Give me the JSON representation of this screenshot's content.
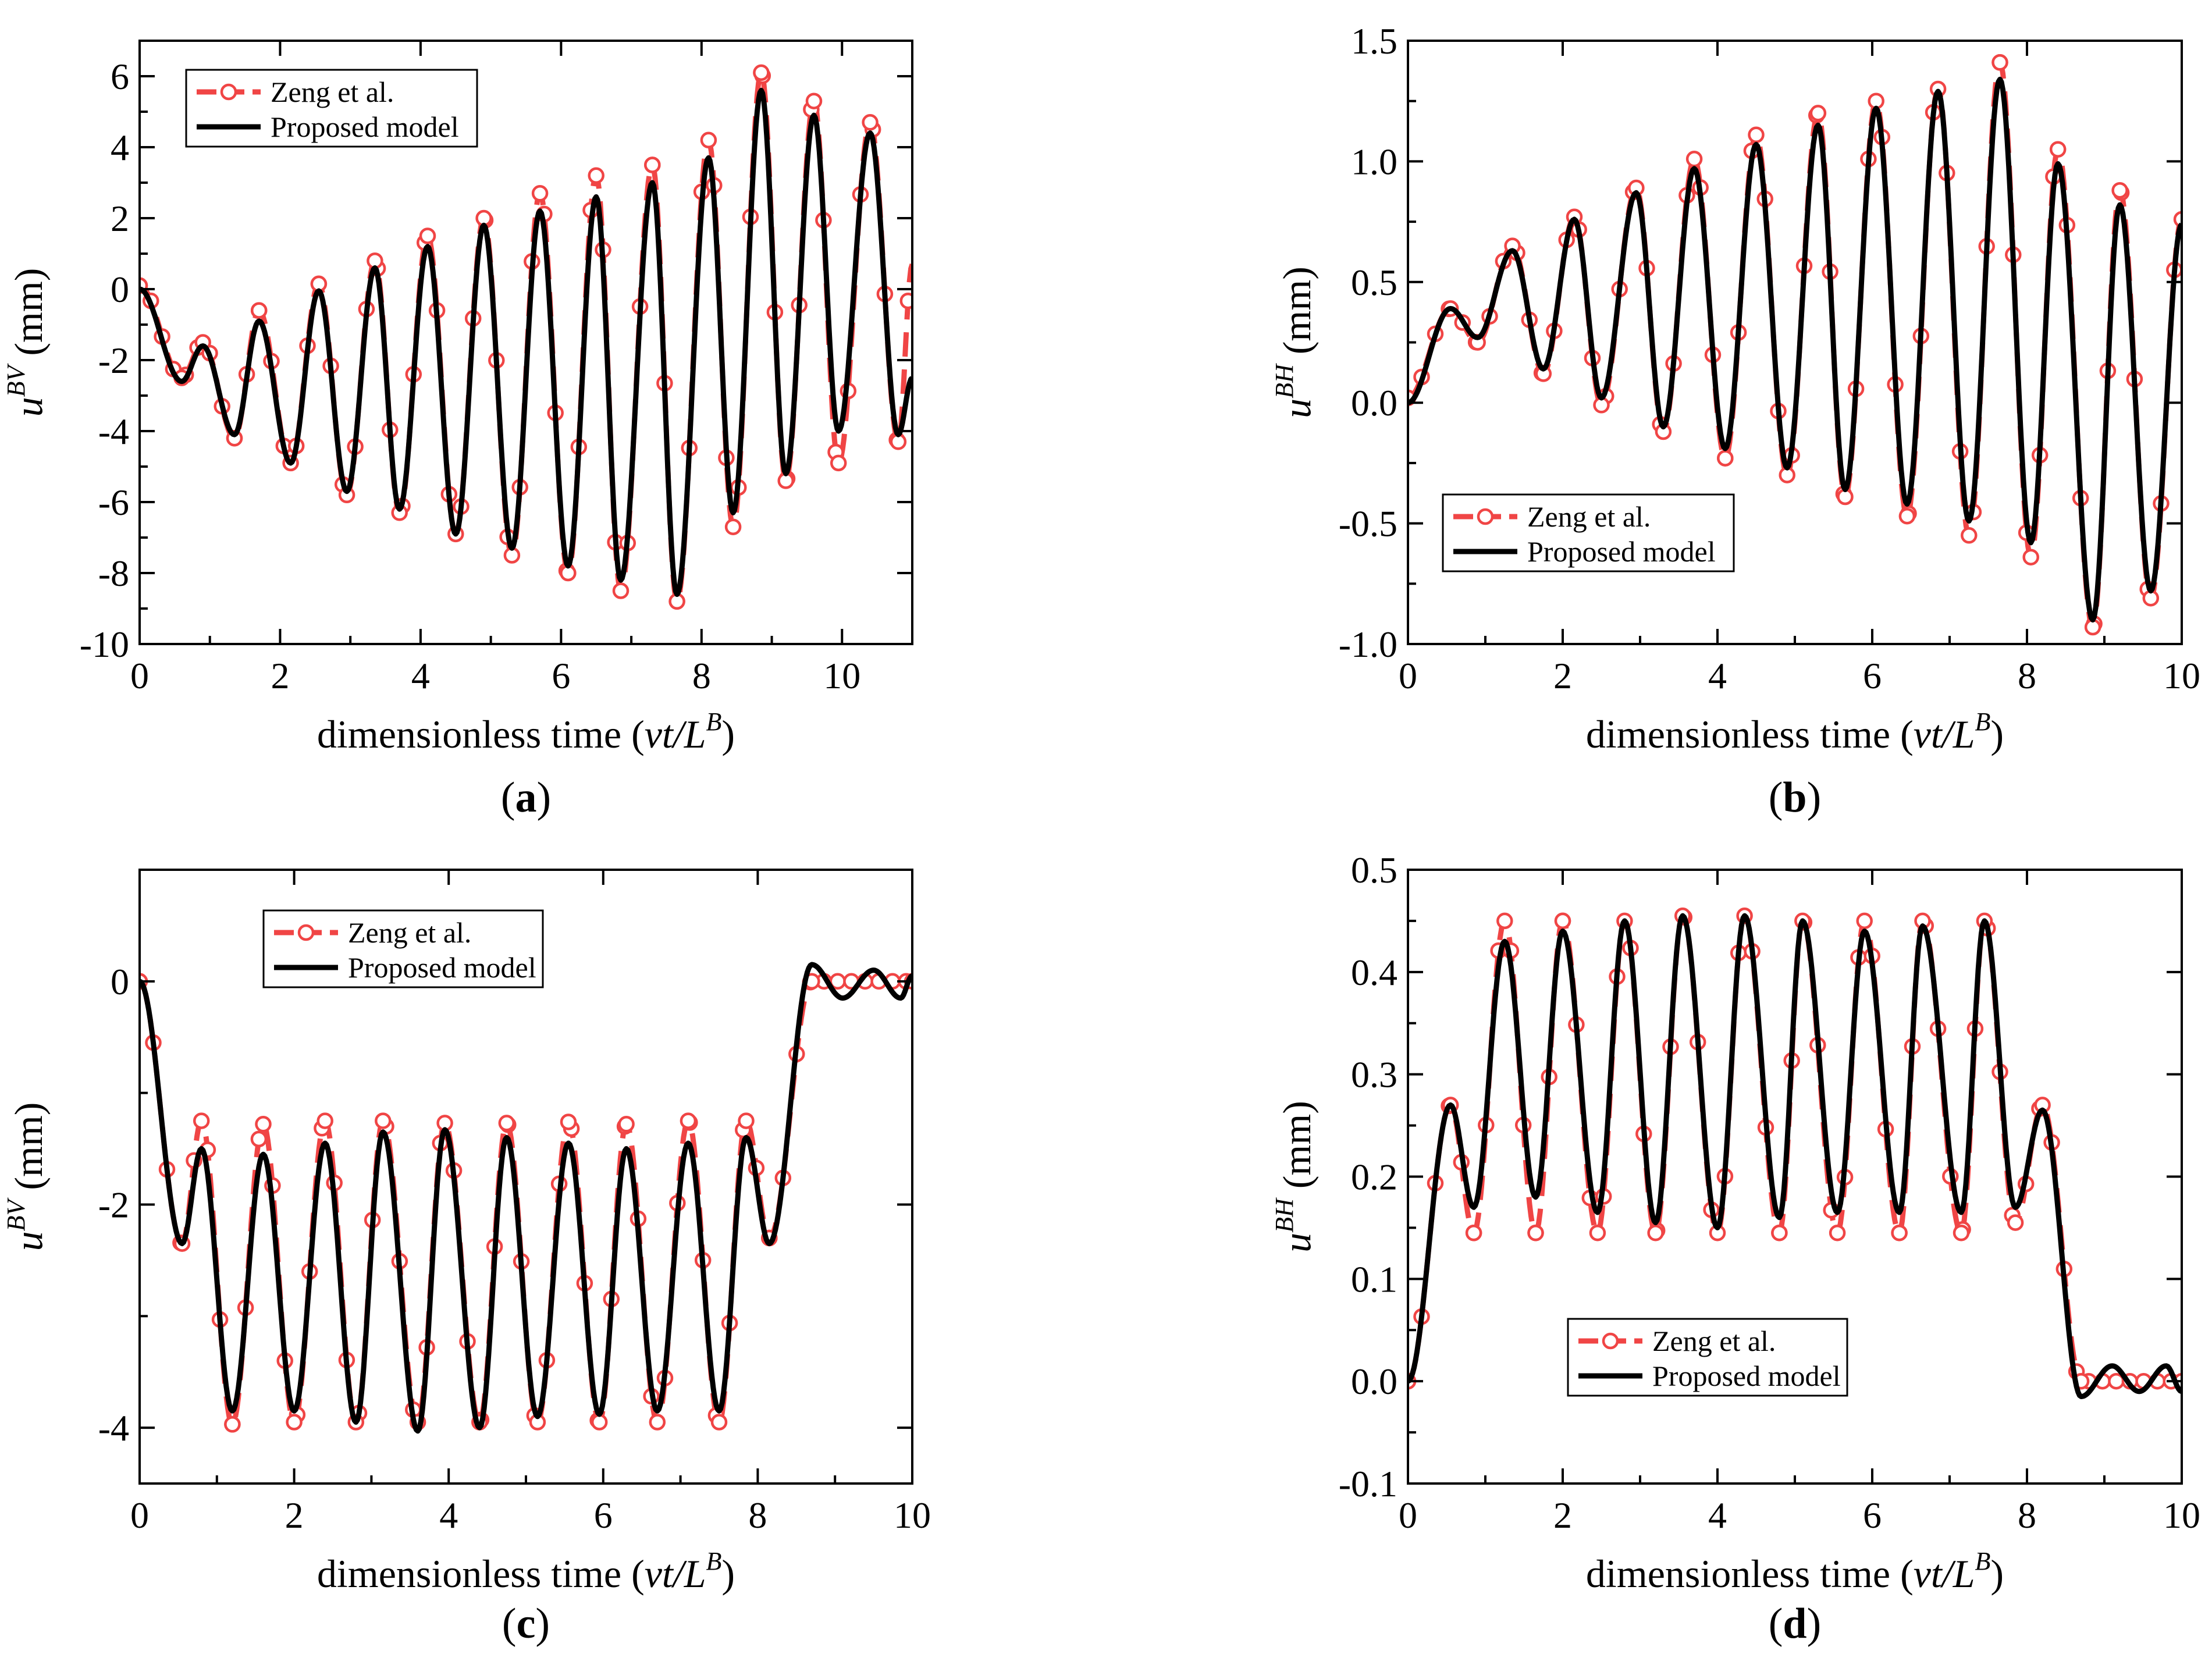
{
  "colors": {
    "reference": "#f04545",
    "proposed": "#000000",
    "axis": "#000000",
    "background": "#ffffff"
  },
  "chart_data": [
    {
      "id": "a",
      "type": "line",
      "caption": {
        "open": "(",
        "letter": "a",
        "close": ")"
      },
      "xlabel": {
        "text": "dimensionless time (",
        "var": "vt/L",
        "sup": "B",
        "close": ")"
      },
      "ylabel": {
        "base": "u",
        "sup": "BV",
        "unit": " (mm)"
      },
      "xlim": [
        0,
        11
      ],
      "ylim": [
        -10,
        7
      ],
      "xticks": [
        0,
        2,
        4,
        6,
        8,
        10
      ],
      "xtick_labels": [
        "0",
        "2",
        "4",
        "6",
        "8",
        "10"
      ],
      "yticks": [
        -10,
        -8,
        -6,
        -4,
        -2,
        0,
        2,
        4,
        6
      ],
      "ytick_labels": [
        "-10",
        "-8",
        "-6",
        "-4",
        "-2",
        "0",
        "2",
        "4",
        "6"
      ],
      "legend_position": "top-left",
      "grid": false,
      "series": [
        {
          "name": "Zeng et al.",
          "style": "dashed-circles",
          "role": "reference"
        },
        {
          "name": "Proposed model",
          "style": "solid",
          "role": "proposed"
        }
      ],
      "signal": {
        "shape": "growing-oscillation",
        "period": 0.79,
        "peaks": [
          [
            0.0,
            0.0
          ],
          [
            0.9,
            -1.6
          ],
          [
            1.7,
            -0.9
          ],
          [
            2.55,
            -0.05
          ],
          [
            3.35,
            0.6
          ],
          [
            4.1,
            1.2
          ],
          [
            4.9,
            1.8
          ],
          [
            5.7,
            2.2
          ],
          [
            6.5,
            2.6
          ],
          [
            7.3,
            3.0
          ],
          [
            8.1,
            3.7
          ],
          [
            8.85,
            5.6
          ],
          [
            9.6,
            4.9
          ],
          [
            10.4,
            4.4
          ]
        ],
        "troughs": [
          [
            0.6,
            -2.6
          ],
          [
            1.35,
            -4.1
          ],
          [
            2.15,
            -4.9
          ],
          [
            2.95,
            -5.7
          ],
          [
            3.7,
            -6.2
          ],
          [
            4.5,
            -6.9
          ],
          [
            5.3,
            -7.3
          ],
          [
            6.1,
            -7.8
          ],
          [
            6.85,
            -8.2
          ],
          [
            7.65,
            -8.6
          ],
          [
            8.45,
            -6.3
          ],
          [
            9.2,
            -5.2
          ],
          [
            9.95,
            -4.0
          ],
          [
            10.8,
            -4.1
          ]
        ],
        "ref_peaks": [
          [
            0.0,
            0.1
          ],
          [
            0.9,
            -1.5
          ],
          [
            1.7,
            -0.6
          ],
          [
            2.55,
            0.15
          ],
          [
            3.35,
            0.8
          ],
          [
            4.1,
            1.5
          ],
          [
            4.9,
            2.0
          ],
          [
            5.7,
            2.7
          ],
          [
            6.5,
            3.2
          ],
          [
            7.3,
            3.5
          ],
          [
            8.1,
            4.2
          ],
          [
            8.85,
            6.1
          ],
          [
            9.6,
            5.3
          ],
          [
            10.4,
            4.7
          ]
        ],
        "ref_troughs": [
          [
            0.6,
            -2.5
          ],
          [
            1.35,
            -4.2
          ],
          [
            2.15,
            -4.9
          ],
          [
            2.95,
            -5.8
          ],
          [
            3.7,
            -6.3
          ],
          [
            4.5,
            -6.9
          ],
          [
            5.3,
            -7.5
          ],
          [
            6.1,
            -8.0
          ],
          [
            6.85,
            -8.5
          ],
          [
            7.65,
            -8.8
          ],
          [
            8.45,
            -6.7
          ],
          [
            9.2,
            -5.4
          ],
          [
            9.95,
            -4.9
          ],
          [
            10.8,
            -4.3
          ]
        ],
        "x_end": 11.0,
        "y_end": -2.5,
        "ref_y_end": 0.7
      }
    },
    {
      "id": "b",
      "type": "line",
      "caption": {
        "open": "(",
        "letter": "b",
        "close": ")"
      },
      "xlabel": {
        "text": "dimensionless time (",
        "var": "vt/L",
        "sup": "B",
        "close": ")"
      },
      "ylabel": {
        "base": "u",
        "sup": "BH",
        "unit": " (mm)"
      },
      "xlim": [
        0,
        10
      ],
      "ylim": [
        -1.0,
        1.5
      ],
      "xticks": [
        0,
        2,
        4,
        6,
        8,
        10
      ],
      "xtick_labels": [
        "0",
        "2",
        "4",
        "6",
        "8",
        "10"
      ],
      "yticks": [
        -1.0,
        -0.5,
        0.0,
        0.5,
        1.0,
        1.5
      ],
      "ytick_labels": [
        "-1.0",
        "-0.5",
        "0.0",
        "0.5",
        "1.0",
        "1.5"
      ],
      "legend_position": "bottom-left",
      "grid": false,
      "series": [
        {
          "name": "Zeng et al.",
          "style": "dashed-circles",
          "role": "reference"
        },
        {
          "name": "Proposed model",
          "style": "solid",
          "role": "proposed"
        }
      ],
      "signal": {
        "shape": "growing-oscillation",
        "period": 0.79,
        "peaks": [
          [
            0.55,
            0.39
          ],
          [
            1.35,
            0.63
          ],
          [
            2.15,
            0.76
          ],
          [
            2.95,
            0.87
          ],
          [
            3.7,
            0.97
          ],
          [
            4.5,
            1.07
          ],
          [
            5.3,
            1.15
          ],
          [
            6.05,
            1.22
          ],
          [
            6.85,
            1.29
          ],
          [
            7.65,
            1.34
          ],
          [
            8.4,
            0.99
          ],
          [
            9.2,
            0.82
          ],
          [
            10.0,
            0.74
          ]
        ],
        "troughs": [
          [
            0.0,
            0.0
          ],
          [
            0.9,
            0.27
          ],
          [
            1.75,
            0.14
          ],
          [
            2.5,
            0.02
          ],
          [
            3.3,
            -0.1
          ],
          [
            4.1,
            -0.19
          ],
          [
            4.9,
            -0.27
          ],
          [
            5.65,
            -0.36
          ],
          [
            6.45,
            -0.42
          ],
          [
            7.25,
            -0.49
          ],
          [
            8.05,
            -0.58
          ],
          [
            8.85,
            -0.9
          ],
          [
            9.6,
            -0.78
          ]
        ],
        "ref_peaks": [
          [
            0.55,
            0.39
          ],
          [
            1.35,
            0.65
          ],
          [
            2.15,
            0.77
          ],
          [
            2.95,
            0.89
          ],
          [
            3.7,
            1.01
          ],
          [
            4.5,
            1.11
          ],
          [
            5.3,
            1.2
          ],
          [
            6.05,
            1.25
          ],
          [
            6.85,
            1.3
          ],
          [
            7.65,
            1.41
          ],
          [
            8.4,
            1.05
          ],
          [
            9.2,
            0.88
          ],
          [
            10.0,
            0.76
          ]
        ],
        "ref_troughs": [
          [
            0.0,
            0.02
          ],
          [
            0.9,
            0.25
          ],
          [
            1.75,
            0.12
          ],
          [
            2.5,
            -0.01
          ],
          [
            3.3,
            -0.12
          ],
          [
            4.1,
            -0.23
          ],
          [
            4.9,
            -0.3
          ],
          [
            5.65,
            -0.39
          ],
          [
            6.45,
            -0.47
          ],
          [
            7.25,
            -0.55
          ],
          [
            8.05,
            -0.64
          ],
          [
            8.85,
            -0.93
          ],
          [
            9.6,
            -0.81
          ]
        ],
        "x_end": 10.0,
        "y_end": 0.74,
        "ref_y_end": 0.76
      }
    },
    {
      "id": "c",
      "type": "line",
      "caption": {
        "open": "(",
        "letter": "c",
        "close": ")"
      },
      "xlabel": {
        "text": "dimensionless time (",
        "var": "vt/L",
        "sup": "B",
        "close": ")"
      },
      "ylabel": {
        "base": "u",
        "sup": "BV",
        "unit": " (mm)"
      },
      "xlim": [
        0,
        10
      ],
      "ylim": [
        -4.5,
        1.0
      ],
      "xticks": [
        0,
        2,
        4,
        6,
        8,
        10
      ],
      "xtick_labels": [
        "0",
        "2",
        "4",
        "6",
        "8",
        "10"
      ],
      "yticks": [
        -4,
        -2,
        0
      ],
      "ytick_labels": [
        "-4",
        "-2",
        "0"
      ],
      "legend_position": "top-center",
      "grid": false,
      "series": [
        {
          "name": "Zeng et al.",
          "style": "dashed-circles",
          "role": "reference"
        },
        {
          "name": "Proposed model",
          "style": "solid",
          "role": "proposed"
        }
      ],
      "signal": {
        "shape": "steady-oscillation-with-free-tail",
        "period": 0.79,
        "peaks": [
          [
            0.0,
            0.0
          ],
          [
            0.8,
            -1.5
          ],
          [
            1.6,
            -1.55
          ],
          [
            2.4,
            -1.45
          ],
          [
            3.15,
            -1.35
          ],
          [
            3.95,
            -1.33
          ],
          [
            4.75,
            -1.4
          ],
          [
            5.55,
            -1.45
          ],
          [
            6.3,
            -1.5
          ],
          [
            7.1,
            -1.45
          ],
          [
            7.85,
            -1.4
          ],
          [
            8.7,
            0.15
          ],
          [
            9.1,
            -0.15
          ],
          [
            9.5,
            0.1
          ],
          [
            9.85,
            -0.15
          ],
          [
            10.0,
            0.05
          ]
        ],
        "troughs": [
          [
            0.55,
            -2.35
          ],
          [
            1.2,
            -3.85
          ],
          [
            2.0,
            -3.85
          ],
          [
            2.8,
            -3.95
          ],
          [
            3.6,
            -4.03
          ],
          [
            4.4,
            -4.0
          ],
          [
            5.15,
            -3.9
          ],
          [
            5.95,
            -3.88
          ],
          [
            6.7,
            -3.85
          ],
          [
            7.5,
            -3.85
          ],
          [
            8.15,
            -2.35
          ]
        ],
        "ref_peaks": [
          [
            0.0,
            0.0
          ],
          [
            0.8,
            -1.25
          ],
          [
            1.6,
            -1.28
          ],
          [
            2.4,
            -1.25
          ],
          [
            3.15,
            -1.25
          ],
          [
            3.95,
            -1.27
          ],
          [
            4.75,
            -1.27
          ],
          [
            5.55,
            -1.26
          ],
          [
            6.3,
            -1.28
          ],
          [
            7.1,
            -1.25
          ],
          [
            7.85,
            -1.25
          ],
          [
            8.7,
            0.0
          ],
          [
            10.0,
            0.0
          ]
        ],
        "ref_troughs": [
          [
            0.55,
            -2.35
          ],
          [
            1.2,
            -3.97
          ],
          [
            2.0,
            -3.95
          ],
          [
            2.8,
            -3.95
          ],
          [
            3.6,
            -3.95
          ],
          [
            4.4,
            -3.95
          ],
          [
            5.15,
            -3.95
          ],
          [
            5.95,
            -3.95
          ],
          [
            6.7,
            -3.95
          ],
          [
            7.5,
            -3.95
          ],
          [
            8.15,
            -2.3
          ]
        ],
        "x_end": 10.0,
        "y_end": 0.05,
        "ref_y_end": 0.0
      }
    },
    {
      "id": "d",
      "type": "line",
      "caption": {
        "open": "(",
        "letter": "d",
        "close": ")"
      },
      "xlabel": {
        "text": "dimensionless time (",
        "var": "vt/L",
        "sup": "B",
        "close": ")"
      },
      "ylabel": {
        "base": "u",
        "sup": "BH",
        "unit": " (mm)"
      },
      "xlim": [
        0,
        10
      ],
      "ylim": [
        -0.1,
        0.5
      ],
      "xticks": [
        0,
        2,
        4,
        6,
        8,
        10
      ],
      "xtick_labels": [
        "0",
        "2",
        "4",
        "6",
        "8",
        "10"
      ],
      "yticks": [
        -0.1,
        0.0,
        0.1,
        0.2,
        0.3,
        0.4,
        0.5
      ],
      "ytick_labels": [
        "-0.1",
        "0.0",
        "0.1",
        "0.2",
        "0.3",
        "0.4",
        "0.5"
      ],
      "legend_position": "bottom-center",
      "grid": false,
      "series": [
        {
          "name": "Zeng et al.",
          "style": "dashed-circles",
          "role": "reference"
        },
        {
          "name": "Proposed model",
          "style": "solid",
          "role": "proposed"
        }
      ],
      "signal": {
        "shape": "steady-oscillation-with-free-tail",
        "period": 0.79,
        "peaks": [
          [
            0.55,
            0.27
          ],
          [
            1.25,
            0.43
          ],
          [
            2.0,
            0.44
          ],
          [
            2.8,
            0.45
          ],
          [
            3.55,
            0.455
          ],
          [
            4.35,
            0.455
          ],
          [
            5.1,
            0.45
          ],
          [
            5.9,
            0.44
          ],
          [
            6.65,
            0.445
          ],
          [
            7.45,
            0.45
          ],
          [
            8.2,
            0.265
          ]
        ],
        "troughs": [
          [
            0.0,
            0.0
          ],
          [
            0.85,
            0.17
          ],
          [
            1.65,
            0.18
          ],
          [
            2.45,
            0.165
          ],
          [
            3.2,
            0.155
          ],
          [
            4.0,
            0.15
          ],
          [
            4.8,
            0.16
          ],
          [
            5.55,
            0.165
          ],
          [
            6.35,
            0.165
          ],
          [
            7.15,
            0.165
          ],
          [
            7.85,
            0.17
          ],
          [
            8.7,
            -0.015
          ],
          [
            9.1,
            0.015
          ],
          [
            9.45,
            -0.01
          ],
          [
            9.8,
            0.015
          ],
          [
            10.0,
            -0.01
          ]
        ],
        "ref_peaks": [
          [
            0.55,
            0.27
          ],
          [
            1.25,
            0.45
          ],
          [
            2.0,
            0.45
          ],
          [
            2.8,
            0.45
          ],
          [
            3.55,
            0.455
          ],
          [
            4.35,
            0.455
          ],
          [
            5.1,
            0.45
          ],
          [
            5.9,
            0.45
          ],
          [
            6.65,
            0.45
          ],
          [
            7.45,
            0.45
          ],
          [
            8.2,
            0.27
          ]
        ],
        "ref_troughs": [
          [
            0.0,
            0.0
          ],
          [
            0.85,
            0.145
          ],
          [
            1.65,
            0.145
          ],
          [
            2.45,
            0.145
          ],
          [
            3.2,
            0.145
          ],
          [
            4.0,
            0.145
          ],
          [
            4.8,
            0.145
          ],
          [
            5.55,
            0.145
          ],
          [
            6.35,
            0.145
          ],
          [
            7.15,
            0.145
          ],
          [
            7.85,
            0.155
          ],
          [
            8.7,
            0.0
          ],
          [
            10.0,
            0.0
          ]
        ],
        "x_end": 10.0,
        "y_end": -0.01,
        "ref_y_end": 0.0
      }
    }
  ]
}
